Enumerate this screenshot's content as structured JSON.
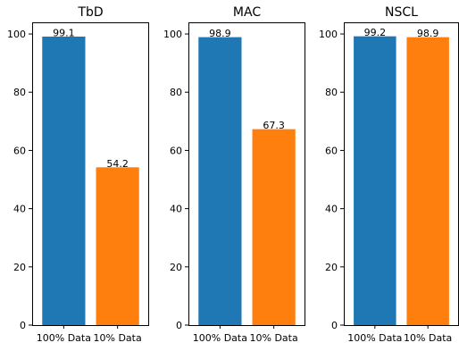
{
  "colors": {
    "series_1": "#1f77b4",
    "series_2": "#ff7f0e",
    "axis": "#000000",
    "background": "#ffffff"
  },
  "chart_data": [
    {
      "type": "bar",
      "title": "TbD",
      "categories": [
        "100% Data",
        "10% Data"
      ],
      "values": [
        99.1,
        54.2
      ],
      "data_labels": [
        "99.1",
        "54.2"
      ],
      "bar_colors": [
        "#1f77b4",
        "#ff7f0e"
      ],
      "xlabel": "",
      "ylabel": "",
      "ylim": [
        0,
        104
      ],
      "yticks": [
        0,
        20,
        40,
        60,
        80,
        100
      ],
      "grid": false,
      "legend": "none"
    },
    {
      "type": "bar",
      "title": "MAC",
      "categories": [
        "100% Data",
        "10% Data"
      ],
      "values": [
        98.9,
        67.3
      ],
      "data_labels": [
        "98.9",
        "67.3"
      ],
      "bar_colors": [
        "#1f77b4",
        "#ff7f0e"
      ],
      "xlabel": "",
      "ylabel": "",
      "ylim": [
        0,
        104
      ],
      "yticks": [
        0,
        20,
        40,
        60,
        80,
        100
      ],
      "grid": false,
      "legend": "none"
    },
    {
      "type": "bar",
      "title": "NSCL",
      "categories": [
        "100% Data",
        "10% Data"
      ],
      "values": [
        99.2,
        98.9
      ],
      "data_labels": [
        "99.2",
        "98.9"
      ],
      "bar_colors": [
        "#1f77b4",
        "#ff7f0e"
      ],
      "xlabel": "",
      "ylabel": "",
      "ylim": [
        0,
        104
      ],
      "yticks": [
        0,
        20,
        40,
        60,
        80,
        100
      ],
      "grid": false,
      "legend": "none"
    }
  ]
}
